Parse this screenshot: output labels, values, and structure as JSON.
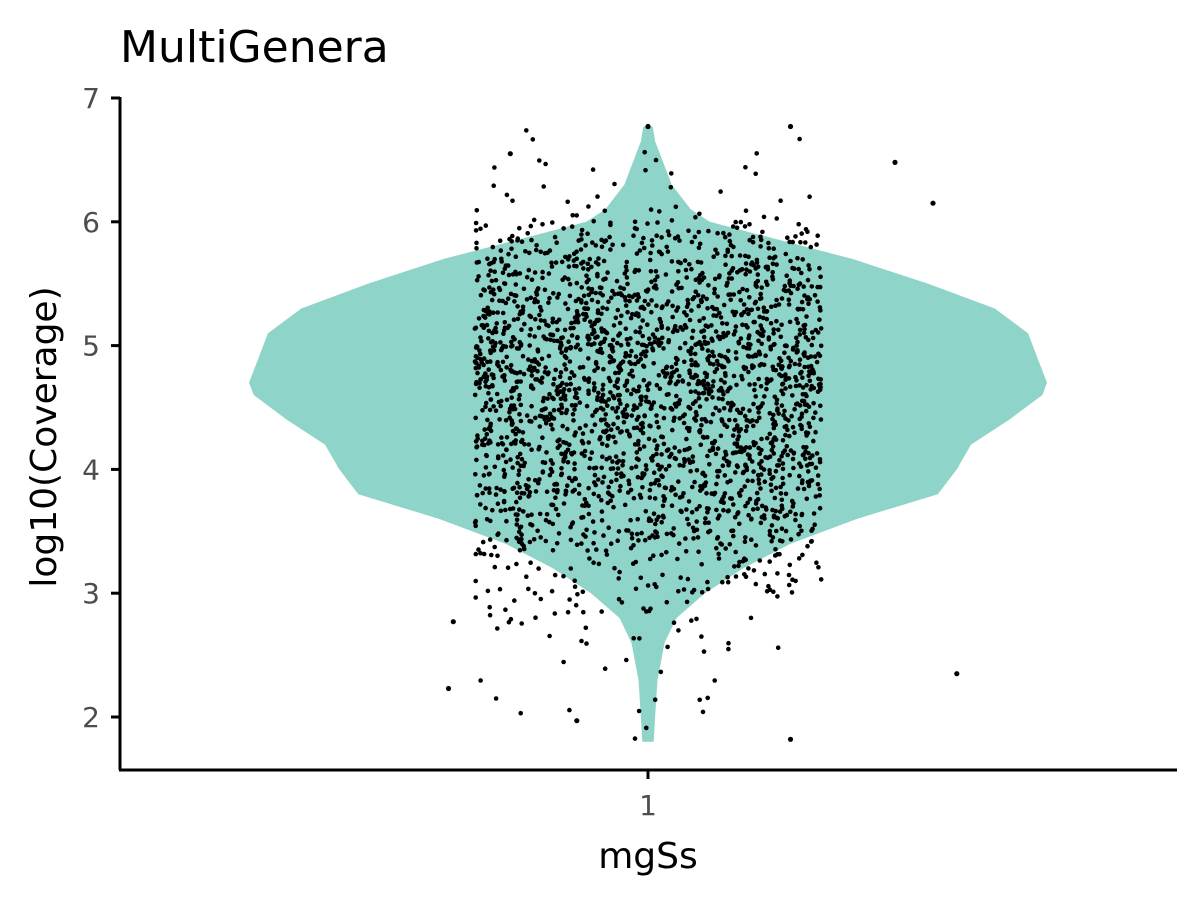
{
  "chart_data": {
    "type": "violin",
    "title": "MultiGenera",
    "xlabel": "mgSs",
    "ylabel": "log10(Coverage)",
    "categories": [
      "1"
    ],
    "y_ticks": [
      2,
      3,
      4,
      5,
      6,
      7
    ],
    "ylim": [
      1.58,
      7.0
    ],
    "grid": false,
    "legend": "none",
    "fill_color": "#8fd4c9",
    "point_color": "#000000",
    "point_count_approx": 2500,
    "summary": {
      "min": 1.82,
      "max": 6.77,
      "bulk_range": [
        3.3,
        6.0
      ]
    },
    "density_profile": [
      {
        "y": 1.8,
        "half_width": 0.012
      },
      {
        "y": 2.0,
        "half_width": 0.015
      },
      {
        "y": 2.3,
        "half_width": 0.02
      },
      {
        "y": 2.6,
        "half_width": 0.035
      },
      {
        "y": 2.8,
        "half_width": 0.06
      },
      {
        "y": 3.0,
        "half_width": 0.12
      },
      {
        "y": 3.2,
        "half_width": 0.2
      },
      {
        "y": 3.4,
        "half_width": 0.3
      },
      {
        "y": 3.6,
        "half_width": 0.44
      },
      {
        "y": 3.8,
        "half_width": 0.61
      },
      {
        "y": 4.0,
        "half_width": 0.65
      },
      {
        "y": 4.2,
        "half_width": 0.68
      },
      {
        "y": 4.4,
        "half_width": 0.76
      },
      {
        "y": 4.6,
        "half_width": 0.83
      },
      {
        "y": 4.7,
        "half_width": 0.84
      },
      {
        "y": 4.9,
        "half_width": 0.82
      },
      {
        "y": 5.1,
        "half_width": 0.8
      },
      {
        "y": 5.3,
        "half_width": 0.73
      },
      {
        "y": 5.5,
        "half_width": 0.59
      },
      {
        "y": 5.7,
        "half_width": 0.43
      },
      {
        "y": 5.9,
        "half_width": 0.23
      },
      {
        "y": 6.0,
        "half_width": 0.13
      },
      {
        "y": 6.1,
        "half_width": 0.09
      },
      {
        "y": 6.3,
        "half_width": 0.05
      },
      {
        "y": 6.5,
        "half_width": 0.03
      },
      {
        "y": 6.65,
        "half_width": 0.015
      },
      {
        "y": 6.77,
        "half_width": 0.01
      }
    ],
    "highlighted_points": [
      {
        "x": 1.0,
        "y": 6.77
      },
      {
        "x": 1.3,
        "y": 6.77
      },
      {
        "x": 0.71,
        "y": 6.55
      },
      {
        "x": 1.52,
        "y": 6.48
      },
      {
        "x": 0.58,
        "y": 2.23
      },
      {
        "x": 0.85,
        "y": 1.97
      },
      {
        "x": 1.3,
        "y": 1.82
      },
      {
        "x": 1.6,
        "y": 6.15
      },
      {
        "x": 1.65,
        "y": 2.35
      },
      {
        "x": 0.59,
        "y": 2.77
      }
    ]
  }
}
